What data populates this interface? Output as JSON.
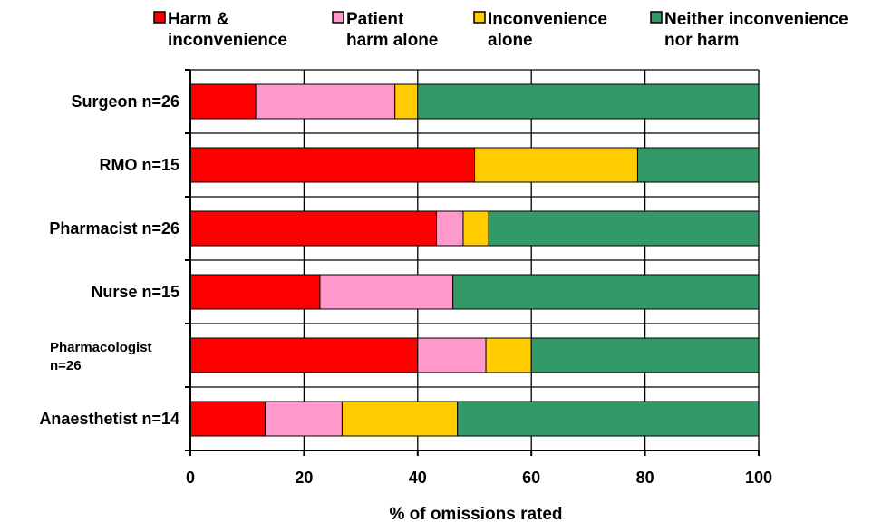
{
  "chart_data": {
    "type": "bar",
    "stacked": true,
    "orientation": "horizontal",
    "categories": [
      [
        "Surgeon n=26"
      ],
      [
        "RMO n=15"
      ],
      [
        "Pharmacist n=26"
      ],
      [
        "Nurse n=15"
      ],
      [
        "Pharmacologist",
        "n=26"
      ],
      [
        "Anaesthetist n=14"
      ]
    ],
    "series": [
      {
        "name": [
          "Harm &",
          "inconvenience"
        ],
        "color": "#ff0000",
        "values": [
          11.5,
          50,
          43.3,
          22.8,
          40,
          13.2
        ]
      },
      {
        "name": [
          "Patient",
          "harm alone"
        ],
        "color": "#ff99cc",
        "values": [
          24.5,
          0,
          4.7,
          23.4,
          12,
          13.5
        ]
      },
      {
        "name": [
          "Inconvenience",
          "alone"
        ],
        "color": "#ffcc00",
        "values": [
          4,
          28.7,
          4.5,
          0,
          8,
          20.3
        ]
      },
      {
        "name": [
          "Neither inconvenience",
          "nor harm"
        ],
        "color": "#339966",
        "values": [
          60,
          21.3,
          47.5,
          53.8,
          40,
          53
        ]
      }
    ],
    "xlabel": "% of omissions rated",
    "xlim": [
      0,
      100
    ],
    "xticks": [
      "0",
      "20",
      "40",
      "60",
      "80",
      "100"
    ],
    "grid": true,
    "legend": "top"
  }
}
